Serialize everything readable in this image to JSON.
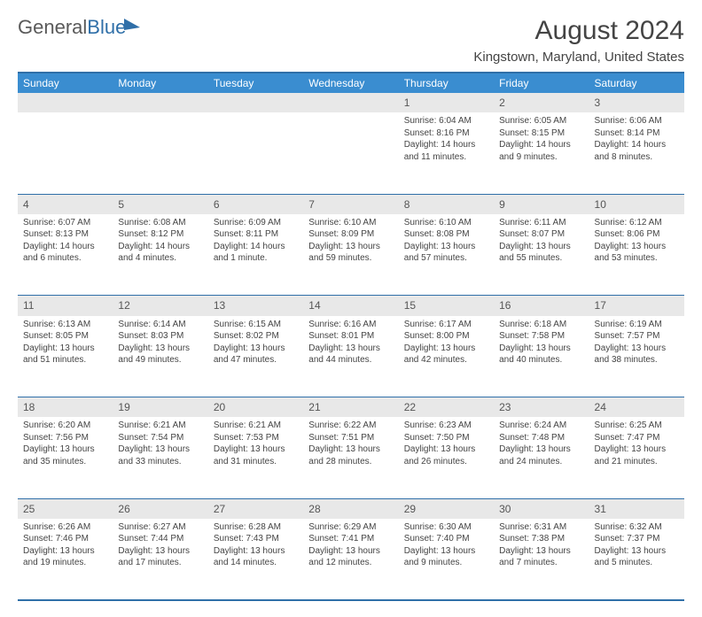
{
  "logo": {
    "part1": "General",
    "part2": "Blue"
  },
  "title": "August 2024",
  "location": "Kingstown, Maryland, United States",
  "day_headers": [
    "Sunday",
    "Monday",
    "Tuesday",
    "Wednesday",
    "Thursday",
    "Friday",
    "Saturday"
  ],
  "colors": {
    "header_bg": "#3a8dd0",
    "border": "#2f6fa8",
    "daynum_bg": "#e8e8e8"
  },
  "weeks": [
    [
      null,
      null,
      null,
      null,
      {
        "n": "1",
        "sr": "Sunrise: 6:04 AM",
        "ss": "Sunset: 8:16 PM",
        "d1": "Daylight: 14 hours",
        "d2": "and 11 minutes."
      },
      {
        "n": "2",
        "sr": "Sunrise: 6:05 AM",
        "ss": "Sunset: 8:15 PM",
        "d1": "Daylight: 14 hours",
        "d2": "and 9 minutes."
      },
      {
        "n": "3",
        "sr": "Sunrise: 6:06 AM",
        "ss": "Sunset: 8:14 PM",
        "d1": "Daylight: 14 hours",
        "d2": "and 8 minutes."
      }
    ],
    [
      {
        "n": "4",
        "sr": "Sunrise: 6:07 AM",
        "ss": "Sunset: 8:13 PM",
        "d1": "Daylight: 14 hours",
        "d2": "and 6 minutes."
      },
      {
        "n": "5",
        "sr": "Sunrise: 6:08 AM",
        "ss": "Sunset: 8:12 PM",
        "d1": "Daylight: 14 hours",
        "d2": "and 4 minutes."
      },
      {
        "n": "6",
        "sr": "Sunrise: 6:09 AM",
        "ss": "Sunset: 8:11 PM",
        "d1": "Daylight: 14 hours",
        "d2": "and 1 minute."
      },
      {
        "n": "7",
        "sr": "Sunrise: 6:10 AM",
        "ss": "Sunset: 8:09 PM",
        "d1": "Daylight: 13 hours",
        "d2": "and 59 minutes."
      },
      {
        "n": "8",
        "sr": "Sunrise: 6:10 AM",
        "ss": "Sunset: 8:08 PM",
        "d1": "Daylight: 13 hours",
        "d2": "and 57 minutes."
      },
      {
        "n": "9",
        "sr": "Sunrise: 6:11 AM",
        "ss": "Sunset: 8:07 PM",
        "d1": "Daylight: 13 hours",
        "d2": "and 55 minutes."
      },
      {
        "n": "10",
        "sr": "Sunrise: 6:12 AM",
        "ss": "Sunset: 8:06 PM",
        "d1": "Daylight: 13 hours",
        "d2": "and 53 minutes."
      }
    ],
    [
      {
        "n": "11",
        "sr": "Sunrise: 6:13 AM",
        "ss": "Sunset: 8:05 PM",
        "d1": "Daylight: 13 hours",
        "d2": "and 51 minutes."
      },
      {
        "n": "12",
        "sr": "Sunrise: 6:14 AM",
        "ss": "Sunset: 8:03 PM",
        "d1": "Daylight: 13 hours",
        "d2": "and 49 minutes."
      },
      {
        "n": "13",
        "sr": "Sunrise: 6:15 AM",
        "ss": "Sunset: 8:02 PM",
        "d1": "Daylight: 13 hours",
        "d2": "and 47 minutes."
      },
      {
        "n": "14",
        "sr": "Sunrise: 6:16 AM",
        "ss": "Sunset: 8:01 PM",
        "d1": "Daylight: 13 hours",
        "d2": "and 44 minutes."
      },
      {
        "n": "15",
        "sr": "Sunrise: 6:17 AM",
        "ss": "Sunset: 8:00 PM",
        "d1": "Daylight: 13 hours",
        "d2": "and 42 minutes."
      },
      {
        "n": "16",
        "sr": "Sunrise: 6:18 AM",
        "ss": "Sunset: 7:58 PM",
        "d1": "Daylight: 13 hours",
        "d2": "and 40 minutes."
      },
      {
        "n": "17",
        "sr": "Sunrise: 6:19 AM",
        "ss": "Sunset: 7:57 PM",
        "d1": "Daylight: 13 hours",
        "d2": "and 38 minutes."
      }
    ],
    [
      {
        "n": "18",
        "sr": "Sunrise: 6:20 AM",
        "ss": "Sunset: 7:56 PM",
        "d1": "Daylight: 13 hours",
        "d2": "and 35 minutes."
      },
      {
        "n": "19",
        "sr": "Sunrise: 6:21 AM",
        "ss": "Sunset: 7:54 PM",
        "d1": "Daylight: 13 hours",
        "d2": "and 33 minutes."
      },
      {
        "n": "20",
        "sr": "Sunrise: 6:21 AM",
        "ss": "Sunset: 7:53 PM",
        "d1": "Daylight: 13 hours",
        "d2": "and 31 minutes."
      },
      {
        "n": "21",
        "sr": "Sunrise: 6:22 AM",
        "ss": "Sunset: 7:51 PM",
        "d1": "Daylight: 13 hours",
        "d2": "and 28 minutes."
      },
      {
        "n": "22",
        "sr": "Sunrise: 6:23 AM",
        "ss": "Sunset: 7:50 PM",
        "d1": "Daylight: 13 hours",
        "d2": "and 26 minutes."
      },
      {
        "n": "23",
        "sr": "Sunrise: 6:24 AM",
        "ss": "Sunset: 7:48 PM",
        "d1": "Daylight: 13 hours",
        "d2": "and 24 minutes."
      },
      {
        "n": "24",
        "sr": "Sunrise: 6:25 AM",
        "ss": "Sunset: 7:47 PM",
        "d1": "Daylight: 13 hours",
        "d2": "and 21 minutes."
      }
    ],
    [
      {
        "n": "25",
        "sr": "Sunrise: 6:26 AM",
        "ss": "Sunset: 7:46 PM",
        "d1": "Daylight: 13 hours",
        "d2": "and 19 minutes."
      },
      {
        "n": "26",
        "sr": "Sunrise: 6:27 AM",
        "ss": "Sunset: 7:44 PM",
        "d1": "Daylight: 13 hours",
        "d2": "and 17 minutes."
      },
      {
        "n": "27",
        "sr": "Sunrise: 6:28 AM",
        "ss": "Sunset: 7:43 PM",
        "d1": "Daylight: 13 hours",
        "d2": "and 14 minutes."
      },
      {
        "n": "28",
        "sr": "Sunrise: 6:29 AM",
        "ss": "Sunset: 7:41 PM",
        "d1": "Daylight: 13 hours",
        "d2": "and 12 minutes."
      },
      {
        "n": "29",
        "sr": "Sunrise: 6:30 AM",
        "ss": "Sunset: 7:40 PM",
        "d1": "Daylight: 13 hours",
        "d2": "and 9 minutes."
      },
      {
        "n": "30",
        "sr": "Sunrise: 6:31 AM",
        "ss": "Sunset: 7:38 PM",
        "d1": "Daylight: 13 hours",
        "d2": "and 7 minutes."
      },
      {
        "n": "31",
        "sr": "Sunrise: 6:32 AM",
        "ss": "Sunset: 7:37 PM",
        "d1": "Daylight: 13 hours",
        "d2": "and 5 minutes."
      }
    ]
  ]
}
